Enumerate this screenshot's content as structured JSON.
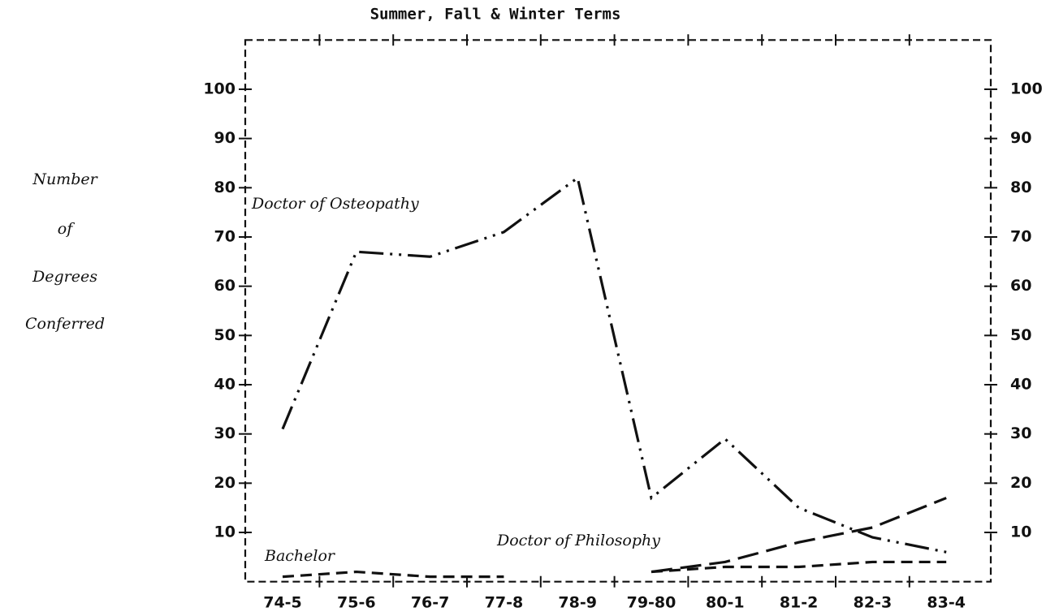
{
  "chart_data": {
    "type": "line",
    "title": "Summer, Fall & Winter Terms",
    "ylabel": [
      "Number",
      "of",
      "Degrees",
      "Conferred"
    ],
    "categories": [
      "74-5",
      "75-6",
      "76-7",
      "77-8",
      "78-9",
      "79-80",
      "80-1",
      "81-2",
      "82-3",
      "83-4"
    ],
    "series": [
      {
        "name": "Doctor of Osteopathy",
        "color": "#111111",
        "dash": "dash-dot-dot",
        "values": [
          31,
          67,
          66,
          71,
          82,
          17,
          29,
          15,
          9,
          6
        ]
      },
      {
        "name": "Doctor of Philosophy",
        "color": "#111111",
        "dash": "long-dash",
        "values": [
          null,
          null,
          null,
          null,
          null,
          2,
          4,
          8,
          11,
          17
        ]
      },
      {
        "name": "Bachelor",
        "color": "#111111",
        "dash": "short-dash",
        "values": [
          1,
          2,
          1,
          1,
          null,
          2,
          3,
          3,
          4,
          4
        ]
      }
    ],
    "ylim": [
      0,
      110
    ],
    "yticks": [
      10,
      20,
      30,
      40,
      50,
      60,
      70,
      80,
      90,
      100
    ],
    "y2lim": [
      0,
      110
    ],
    "y2ticks": [
      10,
      20,
      30,
      40,
      50,
      60,
      70,
      80,
      90,
      100
    ],
    "grid": false
  }
}
